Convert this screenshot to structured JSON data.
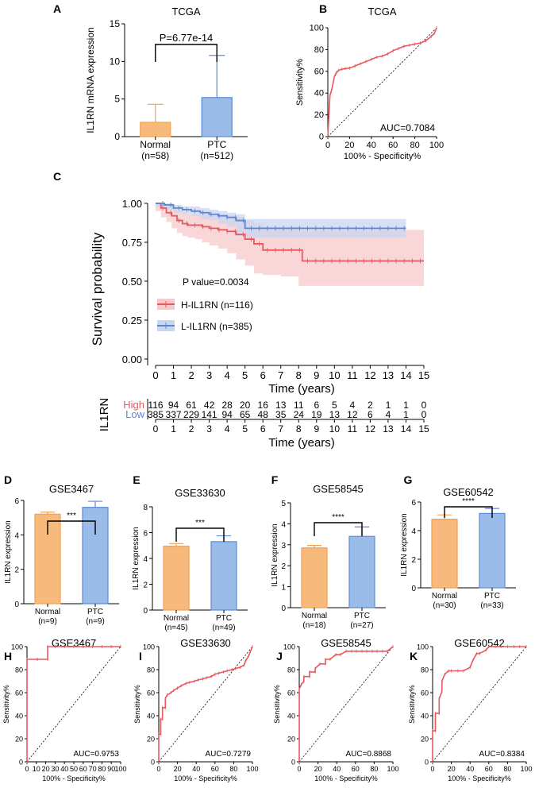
{
  "colors": {
    "normal": "#F5A04E",
    "normal_fill": "#F7B97C",
    "ptc": "#5B8BD6",
    "ptc_fill": "#9BBBE8",
    "high": "#E8585E",
    "low": "#5B86D3",
    "high_band": "#F7C9CB",
    "low_band": "#C9D6F0",
    "axis": "#000000"
  },
  "chart_data": [
    {
      "id": "A",
      "type": "bar",
      "panel_label": "A",
      "title": "TCGA",
      "ylabel": "IL1RN mRNA expression",
      "ylim": [
        0,
        15
      ],
      "yticks": [
        0,
        5,
        10,
        15
      ],
      "categories": [
        "Normal\n(n=58)",
        "PTC\n(n=512)"
      ],
      "category_lines": [
        [
          "Normal",
          "(n=58)"
        ],
        [
          "PTC",
          "(n=512)"
        ]
      ],
      "values": [
        1.9,
        5.2
      ],
      "errors": [
        2.4,
        5.6
      ],
      "annotation": "P=6.77e-14"
    },
    {
      "id": "B",
      "type": "line",
      "panel_label": "B",
      "title": "TCGA",
      "xlabel": "100% - Specificity%",
      "ylabel": "Sensitivity%",
      "xlim": [
        0,
        100
      ],
      "ylim": [
        0,
        100
      ],
      "xticks": [
        0,
        20,
        40,
        60,
        80,
        100
      ],
      "yticks": [
        0,
        20,
        40,
        60,
        80,
        100
      ],
      "auc_label": "AUC=0.7084",
      "x": [
        0,
        0.5,
        1,
        1.5,
        2,
        3,
        4,
        5,
        6,
        7,
        8,
        10,
        13,
        16,
        20,
        25,
        30,
        35,
        40,
        45,
        50,
        55,
        60,
        65,
        70,
        75,
        80,
        85,
        90,
        95,
        98,
        100
      ],
      "y": [
        0,
        10,
        20,
        30,
        38,
        41,
        45,
        50,
        55,
        57,
        59,
        61,
        62,
        62.5,
        63,
        65,
        67,
        69,
        71,
        73,
        74,
        76,
        79,
        81,
        83,
        84,
        85,
        86,
        88,
        92,
        95,
        100
      ]
    },
    {
      "id": "C",
      "type": "line",
      "panel_label": "C",
      "xlabel": "Time (years)",
      "ylabel": "Survival probability",
      "xlim": [
        0,
        15
      ],
      "ylim": [
        0,
        1
      ],
      "xticks": [
        0,
        1,
        2,
        3,
        4,
        5,
        6,
        7,
        8,
        9,
        10,
        11,
        12,
        13,
        14,
        15
      ],
      "yticks": [
        0,
        0.25,
        0.5,
        0.75,
        1.0
      ],
      "ytick_labels": [
        "0.00",
        "0.25",
        "0.50",
        "0.75",
        "1.00"
      ],
      "pvalue": "P value=0.0034",
      "series": [
        {
          "name": "H-IL1RN (n=116)",
          "x": [
            0,
            0.3,
            0.6,
            0.9,
            1.2,
            1.5,
            1.8,
            2.2,
            2.6,
            3.0,
            3.5,
            4.0,
            4.5,
            5.0,
            5.5,
            6.0,
            7.0,
            8.0,
            8.2,
            15
          ],
          "y": [
            1.0,
            0.97,
            0.94,
            0.92,
            0.89,
            0.87,
            0.86,
            0.86,
            0.85,
            0.84,
            0.83,
            0.82,
            0.8,
            0.77,
            0.74,
            0.7,
            0.7,
            0.7,
            0.63,
            0.63
          ],
          "lower": [
            1.0,
            0.95,
            0.91,
            0.88,
            0.84,
            0.81,
            0.79,
            0.78,
            0.77,
            0.75,
            0.73,
            0.71,
            0.68,
            0.64,
            0.6,
            0.55,
            0.54,
            0.53,
            0.47,
            0.47
          ],
          "upper": [
            1.0,
            0.99,
            0.98,
            0.97,
            0.95,
            0.94,
            0.93,
            0.93,
            0.93,
            0.92,
            0.92,
            0.92,
            0.91,
            0.89,
            0.87,
            0.85,
            0.85,
            0.85,
            0.83,
            0.83
          ]
        },
        {
          "name": "L-IL1RN (n=385)",
          "x": [
            0,
            0.5,
            1.0,
            1.5,
            2.0,
            2.5,
            3.0,
            3.5,
            4.0,
            4.5,
            5.0,
            6.0,
            14
          ],
          "y": [
            1.0,
            0.99,
            0.97,
            0.96,
            0.95,
            0.94,
            0.93,
            0.92,
            0.91,
            0.89,
            0.84,
            0.84,
            0.84
          ],
          "lower": [
            1.0,
            0.98,
            0.96,
            0.94,
            0.93,
            0.92,
            0.9,
            0.89,
            0.87,
            0.85,
            0.79,
            0.78,
            0.78
          ],
          "upper": [
            1.0,
            1.0,
            0.99,
            0.98,
            0.98,
            0.97,
            0.96,
            0.95,
            0.94,
            0.93,
            0.9,
            0.9,
            0.9
          ]
        }
      ],
      "risk_table": {
        "title": "IL1RN",
        "rows": [
          {
            "name": "High",
            "values": [
              "116",
              "94",
              "61",
              "42",
              "28",
              "20",
              "16",
              "13",
              "11",
              "6",
              "5",
              "4",
              "2",
              "1",
              "1",
              "0"
            ]
          },
          {
            "name": "Low",
            "values": [
              "385",
              "337",
              "229",
              "141",
              "94",
              "65",
              "48",
              "35",
              "24",
              "19",
              "13",
              "12",
              "6",
              "4",
              "1",
              "0"
            ]
          }
        ],
        "xlabel": "Time (years)"
      }
    },
    {
      "id": "D",
      "type": "bar",
      "panel_label": "D",
      "title": "GSE3467",
      "ylabel": "IL1RN expression",
      "ylim": [
        0,
        6
      ],
      "yticks": [
        0,
        2,
        4,
        6
      ],
      "category_lines": [
        [
          "Normal",
          "(n=9)"
        ],
        [
          "PTC",
          "(n=9)"
        ]
      ],
      "values": [
        5.2,
        5.6
      ],
      "errors": [
        0.12,
        0.35
      ],
      "annotation": "***"
    },
    {
      "id": "E",
      "type": "bar",
      "panel_label": "E",
      "title": "GSE33630",
      "ylabel": "IL1RN expression",
      "ylim": [
        0,
        8
      ],
      "yticks": [
        0,
        2,
        4,
        6,
        8
      ],
      "category_lines": [
        [
          "Normal",
          "(n=45)"
        ],
        [
          "PTC",
          "(n=49)"
        ]
      ],
      "values": [
        4.95,
        5.3
      ],
      "errors": [
        0.2,
        0.45
      ],
      "annotation": "***"
    },
    {
      "id": "F",
      "type": "bar",
      "panel_label": "F",
      "title": "GSE58545",
      "ylabel": "IL1RN expression",
      "ylim": [
        0,
        5
      ],
      "yticks": [
        0,
        1,
        2,
        3,
        4,
        5
      ],
      "category_lines": [
        [
          "Normal",
          "(n=18)"
        ],
        [
          "PTC",
          "(n=27)"
        ]
      ],
      "values": [
        2.85,
        3.4
      ],
      "errors": [
        0.12,
        0.45
      ],
      "annotation": "****"
    },
    {
      "id": "G",
      "type": "bar",
      "panel_label": "G",
      "title": "GSE60542",
      "ylabel": "IL1RN expression",
      "ylim": [
        0,
        6
      ],
      "yticks": [
        0,
        2,
        4,
        6
      ],
      "category_lines": [
        [
          "Normal",
          "(n=30)"
        ],
        [
          "PTC",
          "(n=33)"
        ]
      ],
      "values": [
        4.8,
        5.2
      ],
      "errors": [
        0.3,
        0.35
      ],
      "annotation": "****"
    },
    {
      "id": "H",
      "type": "line",
      "panel_label": "H",
      "title": "GSE3467",
      "xlabel": "100% - Specificity%",
      "ylabel": "Sensitivity%",
      "auc_label": "AUC=0.9753",
      "xlim": [
        0,
        100
      ],
      "ylim": [
        0,
        100
      ],
      "xticks": [
        0,
        10,
        20,
        30,
        40,
        50,
        60,
        70,
        80,
        90,
        100
      ],
      "yticks": [
        0,
        20,
        40,
        60,
        80,
        100
      ],
      "x": [
        0,
        0,
        0,
        11,
        11,
        22,
        22,
        30,
        40,
        50,
        60,
        70,
        80,
        90,
        100
      ],
      "y": [
        0,
        60,
        89,
        89,
        89,
        89,
        100,
        100,
        100,
        100,
        100,
        100,
        100,
        100,
        100
      ]
    },
    {
      "id": "I",
      "type": "line",
      "panel_label": "I",
      "title": "GSE33630",
      "xlabel": "100% - Specificity%",
      "ylabel": "Sensitivity%",
      "auc_label": "AUC=0.7279",
      "xlim": [
        0,
        100
      ],
      "ylim": [
        0,
        100
      ],
      "xticks": [
        0,
        20,
        40,
        60,
        80,
        100
      ],
      "yticks": [
        0,
        20,
        40,
        60,
        80,
        100
      ],
      "x": [
        0,
        0,
        2,
        2,
        4,
        4,
        7,
        7,
        9,
        13,
        16,
        20,
        24,
        29,
        33,
        38,
        42,
        47,
        51,
        56,
        60,
        64,
        69,
        73,
        78,
        82,
        87,
        91,
        93,
        96,
        98,
        100
      ],
      "y": [
        0,
        24,
        24,
        37,
        37,
        47,
        47,
        55,
        58,
        60,
        62,
        64,
        66,
        68,
        69,
        70,
        71,
        72,
        73,
        74,
        76,
        77,
        78,
        79,
        80,
        81,
        82,
        84,
        88,
        92,
        96,
        100
      ]
    },
    {
      "id": "J",
      "type": "line",
      "panel_label": "J",
      "title": "GSE58545",
      "xlabel": "100% - Specificity%",
      "ylabel": "Sensitivity%",
      "auc_label": "AUC=0.8868",
      "xlim": [
        0,
        100
      ],
      "ylim": [
        0,
        100
      ],
      "xticks": [
        0,
        20,
        40,
        60,
        80,
        100
      ],
      "yticks": [
        0,
        20,
        40,
        60,
        80,
        100
      ],
      "x": [
        0,
        0,
        2,
        5,
        5,
        11,
        11,
        17,
        17,
        22,
        28,
        28,
        33,
        39,
        44,
        50,
        56,
        61,
        67,
        72,
        78,
        83,
        89,
        94,
        100
      ],
      "y": [
        0,
        63,
        67,
        70,
        74,
        74,
        78,
        78,
        81,
        85,
        85,
        89,
        89,
        93,
        93,
        96,
        96,
        96,
        96,
        96,
        96,
        96,
        96,
        96,
        100
      ]
    },
    {
      "id": "K",
      "type": "line",
      "panel_label": "K",
      "title": "GSE60542",
      "xlabel": "100% - Specificity%",
      "ylabel": "Sensitivity%",
      "auc_label": "AUC=0.8384",
      "xlim": [
        0,
        100
      ],
      "ylim": [
        0,
        100
      ],
      "xticks": [
        0,
        20,
        40,
        60,
        80,
        100
      ],
      "yticks": [
        0,
        20,
        40,
        60,
        80,
        100
      ],
      "x": [
        0,
        0,
        3,
        3,
        7,
        7,
        10,
        10,
        13,
        17,
        20,
        27,
        33,
        40,
        43,
        47,
        50,
        57,
        60,
        67,
        73,
        80,
        87,
        93,
        100
      ],
      "y": [
        0,
        27,
        27,
        42,
        42,
        55,
        61,
        70,
        76,
        79,
        79,
        79,
        79,
        82,
        88,
        94,
        94,
        97,
        100,
        100,
        100,
        100,
        100,
        100,
        100
      ]
    }
  ]
}
